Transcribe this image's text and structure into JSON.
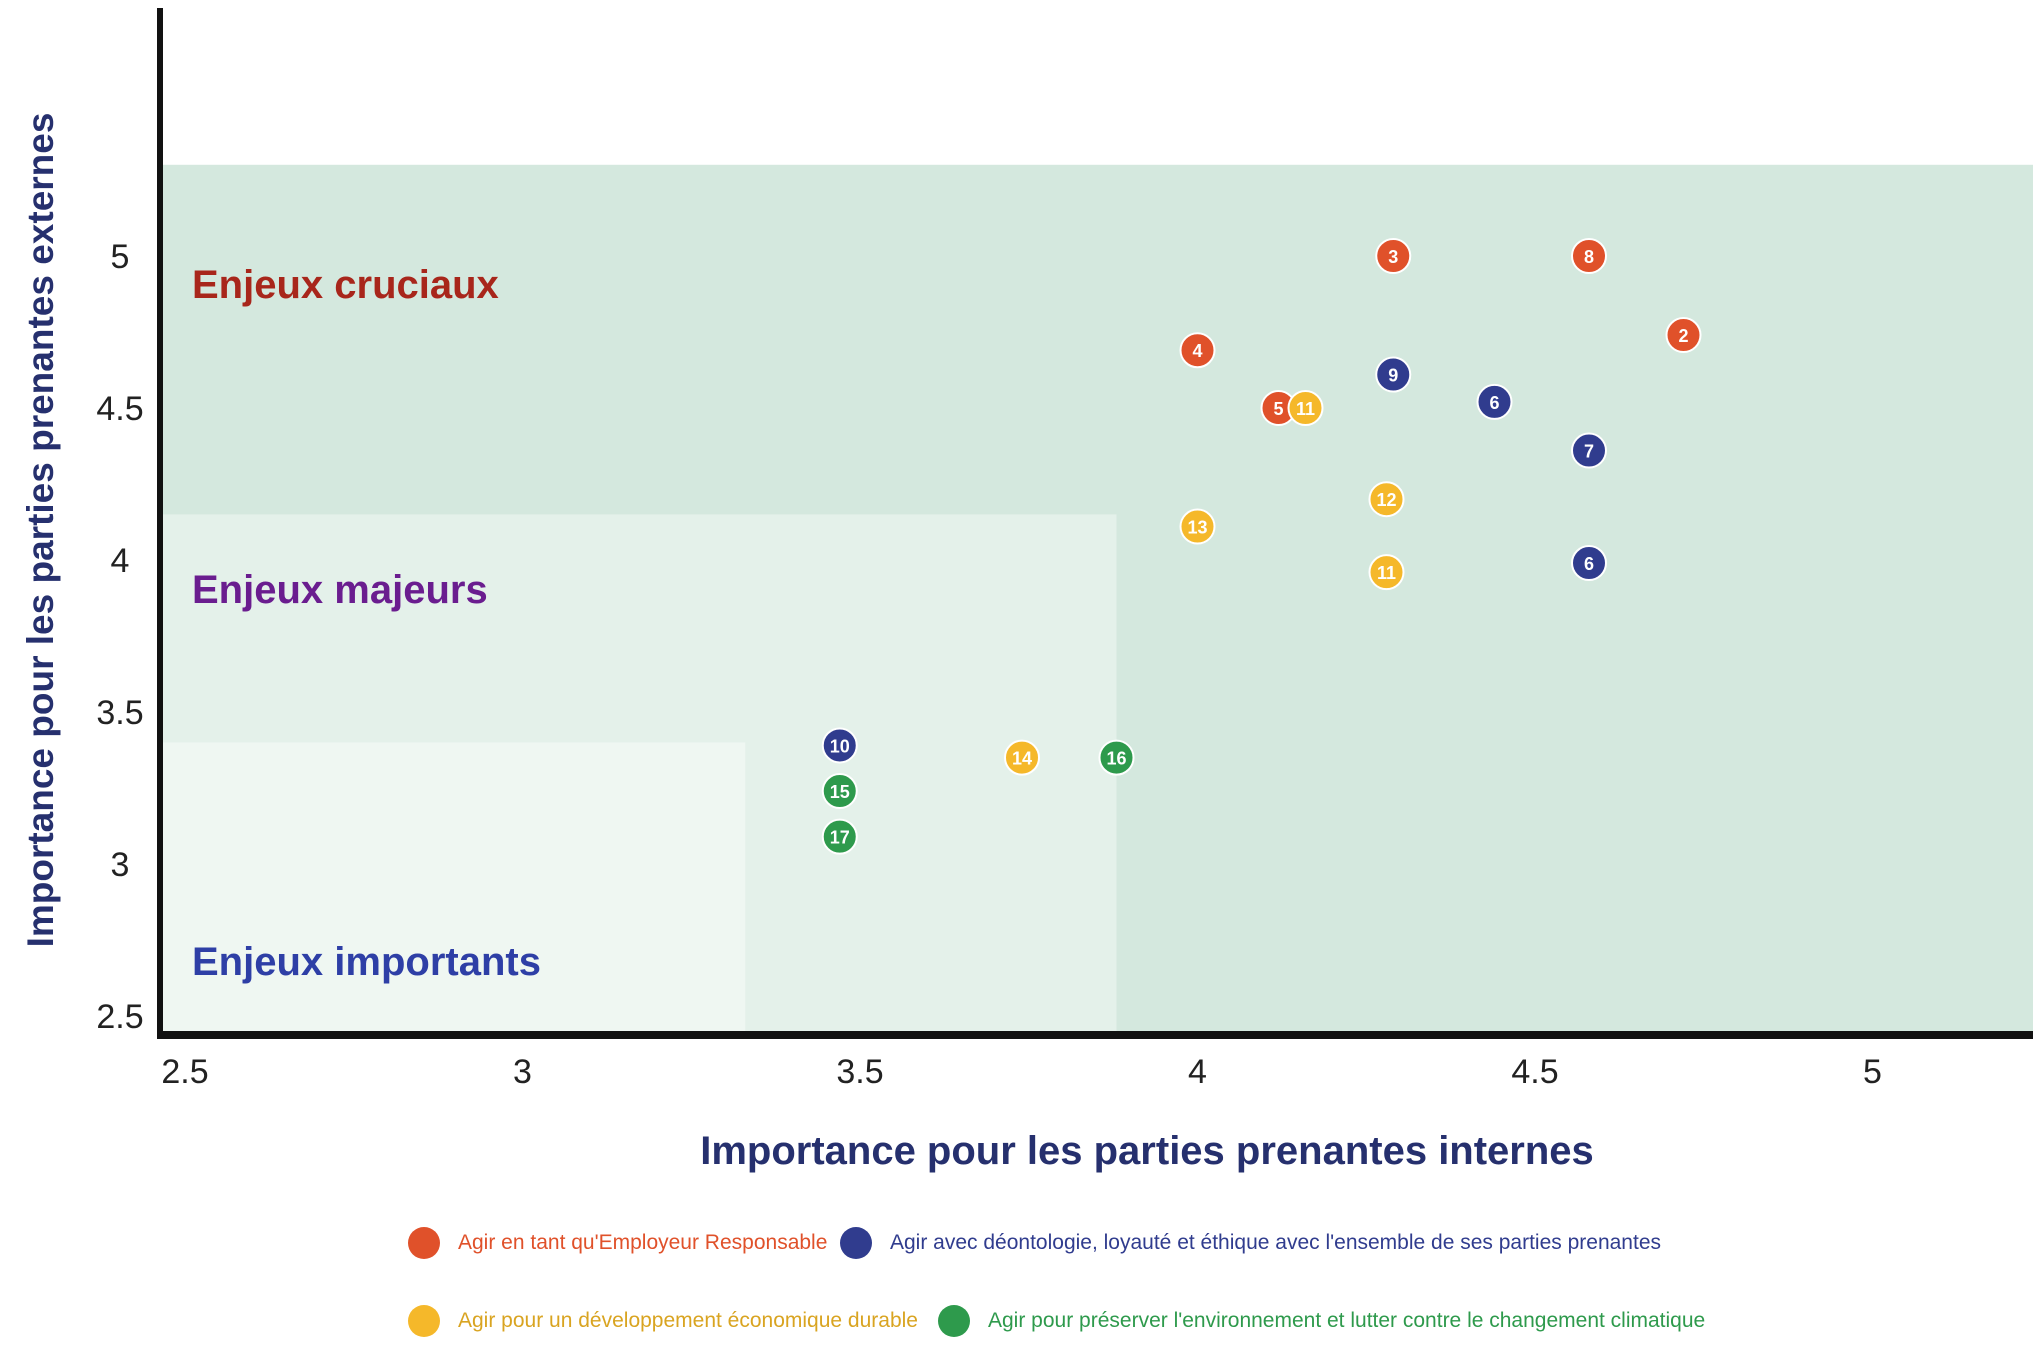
{
  "chart_data": {
    "type": "scatter",
    "title": "",
    "xlabel": "Importance pour les parties prenantes internes",
    "ylabel": "Importance pour les parties prenantes externes",
    "xlim": [
      2.5,
      5.3
    ],
    "ylim": [
      2.5,
      5.3
    ],
    "x_ticks": [
      "2.5",
      "3",
      "3.5",
      "4",
      "4.5",
      "5"
    ],
    "y_ticks": [
      "2.5",
      "3",
      "3.5",
      "4",
      "4.5",
      "5"
    ],
    "grid": false,
    "legend_position": "bottom",
    "zones": [
      {
        "label": "Enjeux cruciaux",
        "color": "#d4e8de",
        "label_color": "#a8261b",
        "x_max": 5.3,
        "y_max": 5.3
      },
      {
        "label": "Enjeux majeurs",
        "color": "#e4f1ea",
        "label_color": "#6a1d8f",
        "x_max": 3.88,
        "y_max": 4.15
      },
      {
        "label": "Enjeux importants",
        "color": "#eff7f2",
        "label_color": "#2e3fa6",
        "x_max": 3.33,
        "y_max": 3.4
      }
    ],
    "series": [
      {
        "name": "Agir en tant qu'Employeur Responsable",
        "color": "#e0512a",
        "points": [
          {
            "x": 4.29,
            "y": 5.0,
            "label": "3"
          },
          {
            "x": 4.58,
            "y": 5.0,
            "label": "8"
          },
          {
            "x": 4.72,
            "y": 4.74,
            "label": "2"
          },
          {
            "x": 4.0,
            "y": 4.69,
            "label": "4"
          },
          {
            "x": 4.12,
            "y": 4.5,
            "label": "5"
          }
        ]
      },
      {
        "name": "Agir avec déontologie, loyauté et éthique avec l'ensemble de ses parties prenantes",
        "color": "#303c8e",
        "points": [
          {
            "x": 4.29,
            "y": 4.61,
            "label": "9"
          },
          {
            "x": 4.44,
            "y": 4.52,
            "label": "6"
          },
          {
            "x": 4.58,
            "y": 4.36,
            "label": "7"
          },
          {
            "x": 4.58,
            "y": 3.99,
            "label": "6"
          },
          {
            "x": 3.47,
            "y": 3.39,
            "label": "10"
          }
        ]
      },
      {
        "name": "Agir pour un développement économique durable",
        "color": "#f5b82a",
        "points": [
          {
            "x": 4.16,
            "y": 4.5,
            "label": "11"
          },
          {
            "x": 4.28,
            "y": 4.2,
            "label": "12"
          },
          {
            "x": 4.0,
            "y": 4.11,
            "label": "13"
          },
          {
            "x": 4.28,
            "y": 3.96,
            "label": "11"
          },
          {
            "x": 3.74,
            "y": 3.35,
            "label": "14"
          }
        ]
      },
      {
        "name": "Agir pour préserver l'environnement et lutter contre le changement climatique",
        "color": "#2e9a4c",
        "points": [
          {
            "x": 3.88,
            "y": 3.35,
            "label": "16"
          },
          {
            "x": 3.47,
            "y": 3.24,
            "label": "15"
          },
          {
            "x": 3.47,
            "y": 3.09,
            "label": "17"
          }
        ]
      }
    ]
  },
  "colors": {
    "axis": "#111111",
    "axis_title": "#26306e",
    "tick_label": "#222222"
  }
}
